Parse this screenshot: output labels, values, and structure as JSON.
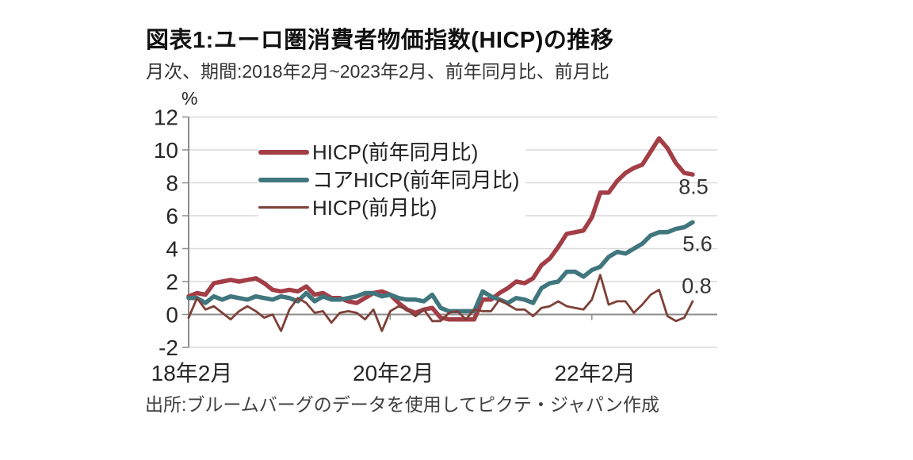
{
  "page": {
    "title": "図表1:ユーロ圏消費者物価指数(HICP)の推移",
    "subtitle": "月次、期間:2018年2月~2023年2月、前年同月比、前月比",
    "unit_label": "%",
    "source": "出所:ブルームバーグのデータを使用してピクテ・ジャパン作成"
  },
  "chart_data": {
    "type": "line",
    "title": "図表1:ユーロ圏消費者物価指数(HICP)の推移",
    "subtitle": "月次、期間:2018年2月~2023年2月、前年同月比、前月比",
    "x_start": "2018-02",
    "x_end": "2023-02",
    "x_frequency": "monthly",
    "ylabel": "%",
    "ylim": [
      -2,
      12
    ],
    "yticks": [
      -2,
      0,
      2,
      4,
      6,
      8,
      10,
      12
    ],
    "xticks": [
      {
        "month_index": 0,
        "label": "18年2月"
      },
      {
        "month_index": 24,
        "label": "20年2月"
      },
      {
        "month_index": 48,
        "label": "22年2月"
      }
    ],
    "grid": "horizontal",
    "legend_position": "inside-top-left",
    "series": [
      {
        "name": "HICP(前年同月比)",
        "color": "#a33e46",
        "stroke_width": 5.5,
        "values": [
          1.1,
          1.3,
          1.2,
          1.9,
          2.0,
          2.1,
          2.0,
          2.1,
          2.2,
          1.9,
          1.5,
          1.4,
          1.5,
          1.4,
          1.7,
          1.2,
          1.3,
          1.0,
          1.0,
          0.8,
          0.7,
          1.0,
          1.3,
          1.4,
          1.2,
          0.7,
          0.3,
          0.1,
          0.3,
          0.4,
          -0.2,
          -0.3,
          -0.3,
          -0.3,
          -0.3,
          0.9,
          0.9,
          1.3,
          1.6,
          2.0,
          1.9,
          2.2,
          3.0,
          3.4,
          4.1,
          4.9,
          5.0,
          5.1,
          5.9,
          7.4,
          7.4,
          8.1,
          8.6,
          8.9,
          9.1,
          9.9,
          10.7,
          10.1,
          9.2,
          8.6,
          8.5
        ]
      },
      {
        "name": "コアHICP(前年同月比)",
        "color": "#40767d",
        "stroke_width": 5.5,
        "values": [
          1.0,
          1.0,
          0.7,
          1.1,
          0.9,
          1.1,
          1.0,
          0.9,
          1.1,
          1.0,
          0.9,
          1.1,
          1.0,
          0.8,
          1.3,
          0.8,
          1.1,
          0.9,
          0.9,
          1.0,
          1.1,
          1.3,
          1.3,
          1.1,
          1.2,
          1.0,
          0.9,
          0.9,
          0.8,
          1.2,
          0.4,
          0.2,
          0.2,
          0.2,
          0.2,
          1.4,
          1.1,
          0.9,
          0.7,
          1.0,
          0.9,
          0.7,
          1.6,
          1.9,
          2.0,
          2.6,
          2.6,
          2.3,
          2.7,
          2.9,
          3.5,
          3.8,
          3.7,
          4.0,
          4.3,
          4.8,
          5.0,
          5.0,
          5.2,
          5.3,
          5.6
        ]
      },
      {
        "name": "HICP(前月比)",
        "color": "#7e4038",
        "stroke_width": 2.8,
        "values": [
          -0.2,
          1.0,
          0.3,
          0.5,
          0.1,
          -0.3,
          0.2,
          0.5,
          0.2,
          -0.2,
          0.0,
          -1.0,
          0.3,
          1.0,
          0.7,
          0.1,
          0.2,
          -0.5,
          0.1,
          0.2,
          0.1,
          -0.3,
          0.3,
          -1.0,
          0.2,
          0.5,
          0.3,
          -0.1,
          0.3,
          -0.4,
          -0.4,
          0.1,
          0.2,
          -0.3,
          0.3,
          0.2,
          0.2,
          0.9,
          0.6,
          0.3,
          0.3,
          -0.1,
          0.4,
          0.5,
          0.8,
          0.5,
          0.4,
          0.3,
          0.9,
          2.4,
          0.6,
          0.8,
          0.8,
          0.1,
          0.6,
          1.2,
          1.5,
          -0.1,
          -0.4,
          -0.2,
          0.8
        ]
      }
    ],
    "end_labels": [
      {
        "series": "HICP(前年同月比)",
        "text": "8.5"
      },
      {
        "series": "コアHICP(前年同月比)",
        "text": "5.6"
      },
      {
        "series": "HICP(前月比)",
        "text": "0.8"
      }
    ],
    "colors": {
      "gridline": "#d9d9d9",
      "zero_line": "#8c8c8c",
      "axis": "#8c8c8c",
      "tick_text": "#262626"
    }
  }
}
